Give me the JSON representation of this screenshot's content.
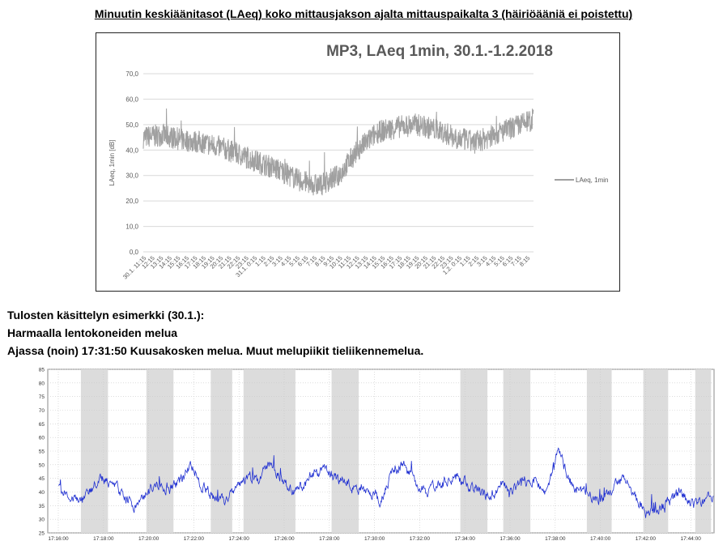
{
  "page": {
    "heading": "Minuutin keskiäänitasot (LAeq) koko mittausjakson ajalta mittauspaikalta 3 (häiriöääniä ei poistettu)",
    "notes": [
      "Tulosten käsittelyn esimerkki (30.1.):",
      "Harmaalla lentokoneiden melua",
      "Ajassa (noin) 17:31:50 Kuusakosken melua. Muut melupiikit tieliikennemelua."
    ]
  },
  "chart_data": [
    {
      "type": "line",
      "title": "MP3, LAeq 1min, 30.1.-1.2.2018",
      "ylabel": "LAeq, 1min [dB]",
      "xlabel": "",
      "ylim": [
        0,
        70
      ],
      "yticks": [
        "0,0",
        "10,0",
        "20,0",
        "30,0",
        "40,0",
        "50,0",
        "60,0",
        "70,0"
      ],
      "grid": true,
      "legend_position": "right",
      "line_color": "#a0a0a0",
      "series": [
        {
          "name": "LAeq, 1min",
          "x": [
            0,
            3,
            6,
            9,
            12,
            15,
            18,
            21,
            24,
            27,
            30,
            33,
            36,
            39,
            42,
            45,
            48,
            51,
            54,
            57,
            60
          ],
          "values": [
            45,
            46,
            44,
            43,
            41,
            38,
            35,
            32,
            28,
            26,
            30,
            40,
            47,
            49,
            50,
            48,
            45,
            43,
            46,
            49,
            52
          ]
        }
      ],
      "xtick_labels": [
        "30.1. 11:15",
        "12:15",
        "13:15",
        "14:15",
        "15:15",
        "16:15",
        "17:15",
        "18:15",
        "19:15",
        "20:15",
        "21:15",
        "22:15",
        "23:15",
        "31.1. 0:15",
        "1:15",
        "2:15",
        "3:15",
        "4:15",
        "5:15",
        "6:15",
        "7:15",
        "8:15",
        "9:15",
        "10:15",
        "11:15",
        "12:15",
        "13:15",
        "14:15",
        "15:15",
        "16:15",
        "17:15",
        "18:15",
        "19:15",
        "20:15",
        "21:15",
        "22:15",
        "23:15",
        "1.2. 0:15",
        "1:15",
        "2:15",
        "3:15",
        "4:15",
        "5:15",
        "6:15",
        "7:15",
        "8:15"
      ]
    },
    {
      "type": "line",
      "title": "",
      "xlabel": "",
      "ylabel": "",
      "ylim": [
        25,
        85
      ],
      "yticks": [
        "25",
        "30",
        "35",
        "40",
        "45",
        "50",
        "55",
        "60",
        "65",
        "70",
        "75",
        "80",
        "85"
      ],
      "grid": true,
      "line_color": "#1f2fd1",
      "shade_color": "#dcdcdc",
      "xticks": [
        "17:16:00",
        "17:18:00",
        "17:20:00",
        "17:22:00",
        "17:24:00",
        "17:26:00",
        "17:28:00",
        "17:30:00",
        "17:32:00",
        "17:34:00",
        "17:36:00",
        "17:38:00",
        "17:40:00",
        "17:42:00",
        "17:44:00"
      ],
      "x_minutes": [
        0,
        1,
        2,
        3,
        4,
        5,
        6,
        7,
        8,
        9,
        10,
        11,
        12,
        13,
        14,
        15,
        16,
        17,
        18,
        19,
        20,
        21,
        22,
        23,
        24,
        25,
        26,
        27,
        28,
        29,
        30,
        31,
        32,
        33,
        34,
        35,
        36,
        37,
        38,
        39,
        40,
        41,
        42,
        43,
        44,
        45,
        46,
        47,
        48,
        49,
        50,
        51,
        52,
        53,
        54,
        55,
        56,
        57,
        58,
        59
      ],
      "series": [
        {
          "name": "",
          "values": [
            44,
            38,
            36,
            41,
            45,
            43,
            37,
            35,
            40,
            43,
            41,
            44,
            50,
            42,
            38,
            37,
            40,
            46,
            44,
            51,
            45,
            40,
            42,
            47,
            48,
            45,
            43,
            41,
            40,
            36,
            46,
            51,
            44,
            40,
            42,
            44,
            46,
            42,
            40,
            38,
            43,
            41,
            44,
            45,
            39,
            56,
            44,
            40,
            39,
            37,
            42,
            45,
            38,
            32,
            33,
            36,
            41,
            35,
            37,
            39
          ]
        }
      ],
      "shaded_periods_minutes": [
        [
          1.0,
          2.2
        ],
        [
          3.9,
          5.1
        ],
        [
          6.75,
          7.7
        ],
        [
          8.2,
          10.5
        ],
        [
          12.1,
          13.3
        ],
        [
          17.8,
          19.0
        ],
        [
          19.7,
          20.9
        ],
        [
          23.4,
          24.5
        ],
        [
          25.9,
          27.0
        ],
        [
          28.2,
          28.9
        ]
      ]
    }
  ]
}
